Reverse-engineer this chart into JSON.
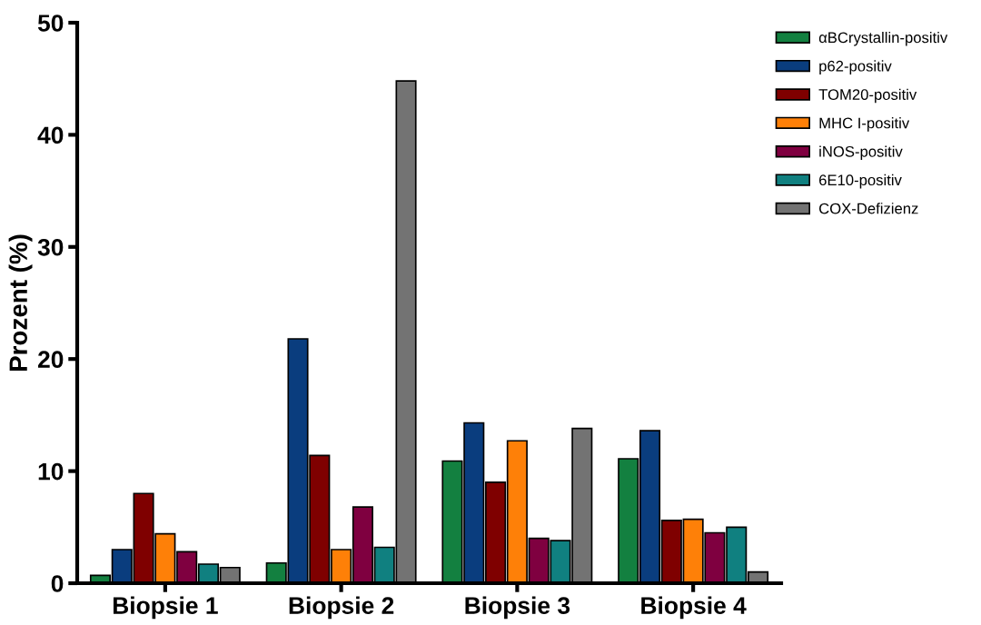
{
  "chart_data": {
    "type": "bar",
    "ylabel": "Prozent (%)",
    "categories": [
      "Biopsie 1",
      "Biopsie 2",
      "Biopsie 3",
      "Biopsie 4"
    ],
    "series": [
      {
        "name": "αBCrystallin-positiv",
        "color": "#138040",
        "values": [
          0.7,
          1.8,
          10.9,
          11.1
        ]
      },
      {
        "name": "p62-positiv",
        "color": "#0a3d7e",
        "values": [
          3.0,
          21.8,
          14.3,
          13.6
        ]
      },
      {
        "name": "TOM20-positiv",
        "color": "#7f0000",
        "values": [
          8.0,
          11.4,
          9.0,
          5.6
        ]
      },
      {
        "name": "MHC I-positiv",
        "color": "#fe8008",
        "values": [
          4.4,
          3.0,
          12.7,
          5.7
        ]
      },
      {
        "name": "iNOS-positiv",
        "color": "#7f0040",
        "values": [
          2.8,
          6.8,
          4.0,
          4.5
        ]
      },
      {
        "name": "6E10-positiv",
        "color": "#108080",
        "values": [
          1.7,
          3.2,
          3.8,
          5.0
        ]
      },
      {
        "name": "COX-Defizienz",
        "color": "#737373",
        "values": [
          1.4,
          44.8,
          13.8,
          1.0
        ]
      }
    ],
    "ylim": [
      0,
      50
    ],
    "yticks": [
      0,
      10,
      20,
      30,
      40,
      50
    ],
    "grid": false,
    "legend": "top right"
  }
}
